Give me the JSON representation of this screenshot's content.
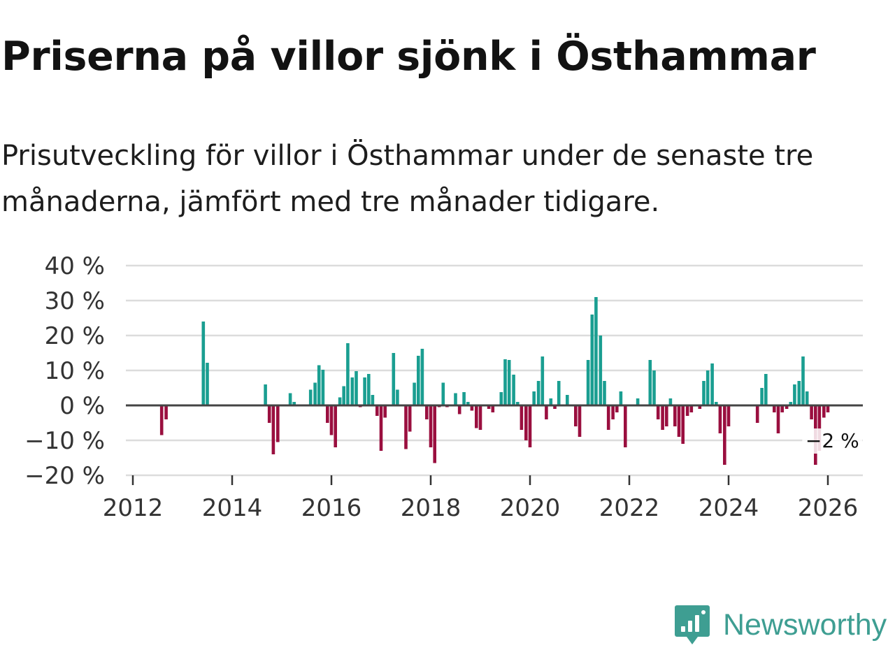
{
  "colors": {
    "positive": "#1a9e91",
    "negative": "#9a0f3f",
    "grid": "#dcdcdc",
    "zero": "#444444",
    "brand": "#3e9e92"
  },
  "header": {
    "title": "Priserna på villor sjönk i Östhammar",
    "subtitle": "Prisutveckling för villor i Östhammar under de senaste tre månaderna, jämfört med tre månader tidigare."
  },
  "brand": {
    "name": "Newsworthy",
    "icon": "newsworthy-logo-icon"
  },
  "chart_data": {
    "type": "bar",
    "title": "Priserna på villor sjönk i Östhammar",
    "xlabel": "",
    "ylabel": "",
    "ylim": [
      -20,
      40
    ],
    "xlim": [
      2012,
      2026.75
    ],
    "grid": true,
    "y_ticks": [
      {
        "value": 40,
        "label": "40 %"
      },
      {
        "value": 30,
        "label": "30 %"
      },
      {
        "value": 20,
        "label": "20 %"
      },
      {
        "value": 10,
        "label": "10 %"
      },
      {
        "value": 0,
        "label": "0 %"
      },
      {
        "value": -10,
        "label": "−10 %"
      },
      {
        "value": -20,
        "label": "−20 %"
      }
    ],
    "x_ticks": [
      {
        "value": 2012,
        "label": "2012"
      },
      {
        "value": 2014,
        "label": "2014"
      },
      {
        "value": 2016,
        "label": "2016"
      },
      {
        "value": 2018,
        "label": "2018"
      },
      {
        "value": 2020,
        "label": "2020"
      },
      {
        "value": 2022,
        "label": "2022"
      },
      {
        "value": 2024,
        "label": "2024"
      },
      {
        "value": 2026,
        "label": "2026"
      }
    ],
    "annotation": {
      "x": 2025.92,
      "y": -2,
      "label": "−2 %"
    },
    "series": [
      {
        "name": "Prisutveckling",
        "points": [
          {
            "x": 2012.58,
            "y": -8.5
          },
          {
            "x": 2012.67,
            "y": -4
          },
          {
            "x": 2013.42,
            "y": 24
          },
          {
            "x": 2013.5,
            "y": 12.2
          },
          {
            "x": 2014.67,
            "y": 6
          },
          {
            "x": 2014.75,
            "y": -5
          },
          {
            "x": 2014.83,
            "y": -14
          },
          {
            "x": 2014.92,
            "y": -10.5
          },
          {
            "x": 2015.17,
            "y": 3.5
          },
          {
            "x": 2015.25,
            "y": 1
          },
          {
            "x": 2015.58,
            "y": 4.5
          },
          {
            "x": 2015.67,
            "y": 6.5
          },
          {
            "x": 2015.75,
            "y": 11.5
          },
          {
            "x": 2015.83,
            "y": 10.2
          },
          {
            "x": 2015.92,
            "y": -5
          },
          {
            "x": 2016.0,
            "y": -8.5
          },
          {
            "x": 2016.08,
            "y": -12
          },
          {
            "x": 2016.17,
            "y": 2.3
          },
          {
            "x": 2016.25,
            "y": 5.5
          },
          {
            "x": 2016.33,
            "y": 17.8
          },
          {
            "x": 2016.42,
            "y": 8
          },
          {
            "x": 2016.5,
            "y": 9.8
          },
          {
            "x": 2016.58,
            "y": -0.5
          },
          {
            "x": 2016.67,
            "y": 8
          },
          {
            "x": 2016.75,
            "y": 9
          },
          {
            "x": 2016.83,
            "y": 3
          },
          {
            "x": 2016.92,
            "y": -3
          },
          {
            "x": 2017.0,
            "y": -13
          },
          {
            "x": 2017.08,
            "y": -3.5
          },
          {
            "x": 2017.25,
            "y": 15
          },
          {
            "x": 2017.33,
            "y": 4.5
          },
          {
            "x": 2017.5,
            "y": -12.5
          },
          {
            "x": 2017.58,
            "y": -7.5
          },
          {
            "x": 2017.67,
            "y": 6.5
          },
          {
            "x": 2017.75,
            "y": 14.2
          },
          {
            "x": 2017.83,
            "y": 16.2
          },
          {
            "x": 2017.92,
            "y": -4
          },
          {
            "x": 2018.0,
            "y": -12
          },
          {
            "x": 2018.08,
            "y": -16.5
          },
          {
            "x": 2018.17,
            "y": -0.5
          },
          {
            "x": 2018.25,
            "y": 6.5
          },
          {
            "x": 2018.33,
            "y": -0.5
          },
          {
            "x": 2018.5,
            "y": 3.5
          },
          {
            "x": 2018.58,
            "y": -2.5
          },
          {
            "x": 2018.67,
            "y": 3.8
          },
          {
            "x": 2018.75,
            "y": 1
          },
          {
            "x": 2018.83,
            "y": -1.5
          },
          {
            "x": 2018.92,
            "y": -6.5
          },
          {
            "x": 2019.0,
            "y": -7
          },
          {
            "x": 2019.17,
            "y": -1
          },
          {
            "x": 2019.25,
            "y": -2
          },
          {
            "x": 2019.42,
            "y": 3.8
          },
          {
            "x": 2019.5,
            "y": 13.2
          },
          {
            "x": 2019.58,
            "y": 13
          },
          {
            "x": 2019.67,
            "y": 8.8
          },
          {
            "x": 2019.75,
            "y": 1
          },
          {
            "x": 2019.83,
            "y": -7
          },
          {
            "x": 2019.92,
            "y": -10
          },
          {
            "x": 2020.0,
            "y": -12
          },
          {
            "x": 2020.08,
            "y": 4
          },
          {
            "x": 2020.17,
            "y": 7
          },
          {
            "x": 2020.25,
            "y": 14
          },
          {
            "x": 2020.33,
            "y": -4
          },
          {
            "x": 2020.42,
            "y": 2
          },
          {
            "x": 2020.5,
            "y": -1
          },
          {
            "x": 2020.58,
            "y": 7
          },
          {
            "x": 2020.75,
            "y": 3
          },
          {
            "x": 2020.92,
            "y": -6
          },
          {
            "x": 2021.0,
            "y": -9
          },
          {
            "x": 2021.17,
            "y": 13
          },
          {
            "x": 2021.25,
            "y": 26
          },
          {
            "x": 2021.33,
            "y": 31
          },
          {
            "x": 2021.42,
            "y": 20
          },
          {
            "x": 2021.5,
            "y": 7
          },
          {
            "x": 2021.58,
            "y": -7
          },
          {
            "x": 2021.67,
            "y": -4
          },
          {
            "x": 2021.75,
            "y": -2
          },
          {
            "x": 2021.83,
            "y": 4
          },
          {
            "x": 2021.92,
            "y": -12
          },
          {
            "x": 2022.17,
            "y": 2
          },
          {
            "x": 2022.42,
            "y": 13
          },
          {
            "x": 2022.5,
            "y": 10
          },
          {
            "x": 2022.58,
            "y": -4
          },
          {
            "x": 2022.67,
            "y": -7
          },
          {
            "x": 2022.75,
            "y": -6
          },
          {
            "x": 2022.83,
            "y": 2
          },
          {
            "x": 2022.92,
            "y": -6
          },
          {
            "x": 2023.0,
            "y": -9
          },
          {
            "x": 2023.08,
            "y": -11
          },
          {
            "x": 2023.17,
            "y": -3
          },
          {
            "x": 2023.25,
            "y": -2
          },
          {
            "x": 2023.42,
            "y": -1
          },
          {
            "x": 2023.5,
            "y": 7
          },
          {
            "x": 2023.58,
            "y": 10
          },
          {
            "x": 2023.67,
            "y": 12
          },
          {
            "x": 2023.75,
            "y": 1
          },
          {
            "x": 2023.83,
            "y": -8
          },
          {
            "x": 2023.92,
            "y": -17
          },
          {
            "x": 2024.0,
            "y": -6
          },
          {
            "x": 2024.58,
            "y": -5
          },
          {
            "x": 2024.67,
            "y": 5
          },
          {
            "x": 2024.75,
            "y": 9
          },
          {
            "x": 2024.92,
            "y": -2
          },
          {
            "x": 2025.0,
            "y": -8
          },
          {
            "x": 2025.08,
            "y": -2
          },
          {
            "x": 2025.17,
            "y": -1
          },
          {
            "x": 2025.25,
            "y": 1
          },
          {
            "x": 2025.33,
            "y": 6
          },
          {
            "x": 2025.42,
            "y": 7
          },
          {
            "x": 2025.5,
            "y": 14
          },
          {
            "x": 2025.58,
            "y": 4
          },
          {
            "x": 2025.67,
            "y": -4
          },
          {
            "x": 2025.75,
            "y": -17
          },
          {
            "x": 2025.83,
            "y": -13
          },
          {
            "x": 2025.92,
            "y": -3.5
          },
          {
            "x": 2026.0,
            "y": -2
          }
        ]
      }
    ]
  }
}
